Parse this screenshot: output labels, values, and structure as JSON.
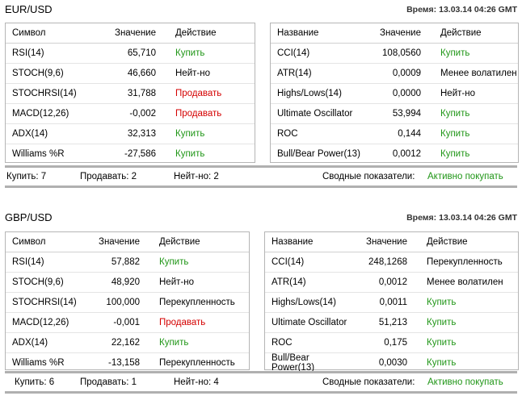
{
  "eur": {
    "title": "EUR/USD",
    "time": "Время: 13.03.14 04:26 GMT",
    "left": {
      "headers": [
        "Символ",
        "Значение",
        "Действие"
      ],
      "rows": [
        {
          "name": "RSI(14)",
          "value": "65,710",
          "action": "Купить",
          "kind": "buy"
        },
        {
          "name": "STOCH(9,6)",
          "value": "46,660",
          "action": "Нейт-но",
          "kind": "neutral"
        },
        {
          "name": "STOCHRSI(14)",
          "value": "31,788",
          "action": "Продавать",
          "kind": "sell"
        },
        {
          "name": "MACD(12,26)",
          "value": "-0,002",
          "action": "Продавать",
          "kind": "sell"
        },
        {
          "name": "ADX(14)",
          "value": "32,313",
          "action": "Купить",
          "kind": "buy"
        },
        {
          "name": "Williams %R",
          "value": "-27,586",
          "action": "Купить",
          "kind": "buy"
        }
      ]
    },
    "right": {
      "headers": [
        "Название",
        "Значение",
        "Действие"
      ],
      "rows": [
        {
          "name": "CCI(14)",
          "value": "108,0560",
          "action": "Купить",
          "kind": "buy"
        },
        {
          "name": "ATR(14)",
          "value": "0,0009",
          "action": "Менее волатилен",
          "kind": "neutral"
        },
        {
          "name": "Highs/Lows(14)",
          "value": "0,0000",
          "action": "Нейт-но",
          "kind": "neutral"
        },
        {
          "name": "Ultimate Oscillator",
          "value": "53,994",
          "action": "Купить",
          "kind": "buy"
        },
        {
          "name": "ROC",
          "value": "0,144",
          "action": "Купить",
          "kind": "buy"
        },
        {
          "name": "Bull/Bear Power(13)",
          "value": "0,0012",
          "action": "Купить",
          "kind": "buy"
        }
      ]
    },
    "summary": {
      "buy": "Купить: 7",
      "sell": "Продавать: 2",
      "neutral": "Нейт-но: 2",
      "label": "Сводные показатели:",
      "value": "Активно покупать"
    }
  },
  "gbp": {
    "title": "GBP/USD",
    "time": "Время: 13.03.14 04:26 GMT",
    "left": {
      "headers": [
        "Символ",
        "Значение",
        "Действие"
      ],
      "rows": [
        {
          "name": "RSI(14)",
          "value": "57,882",
          "action": "Купить",
          "kind": "buy"
        },
        {
          "name": "STOCH(9,6)",
          "value": "48,920",
          "action": "Нейт-но",
          "kind": "neutral"
        },
        {
          "name": "STOCHRSI(14)",
          "value": "100,000",
          "action": "Перекупленность",
          "kind": "neutral"
        },
        {
          "name": "MACD(12,26)",
          "value": "-0,001",
          "action": "Продавать",
          "kind": "sell"
        },
        {
          "name": "ADX(14)",
          "value": "22,162",
          "action": "Купить",
          "kind": "buy"
        },
        {
          "name": "Williams %R",
          "value": "-13,158",
          "action": "Перекупленность",
          "kind": "neutral"
        }
      ]
    },
    "right": {
      "headers": [
        "Название",
        "Значение",
        "Действие"
      ],
      "rows": [
        {
          "name": "CCI(14)",
          "value": "248,1268",
          "action": "Перекупленность",
          "kind": "neutral"
        },
        {
          "name": "ATR(14)",
          "value": "0,0012",
          "action": "Менее волатилен",
          "kind": "neutral"
        },
        {
          "name": "Highs/Lows(14)",
          "value": "0,0011",
          "action": "Купить",
          "kind": "buy"
        },
        {
          "name": "Ultimate Oscillator",
          "value": "51,213",
          "action": "Купить",
          "kind": "buy"
        },
        {
          "name": "ROC",
          "value": "0,175",
          "action": "Купить",
          "kind": "buy"
        },
        {
          "name": "Bull/Bear Power(13)",
          "value": "0,0030",
          "action": "Купить",
          "kind": "buy"
        }
      ]
    },
    "summary": {
      "buy": "Купить: 6",
      "sell": "Продавать: 1",
      "neutral": "Нейт-но: 4",
      "label": "Сводные показатели:",
      "value": "Активно покупать"
    }
  },
  "colors": {
    "buy": "#209617",
    "sell": "#d40000",
    "neutral": "#000000"
  }
}
